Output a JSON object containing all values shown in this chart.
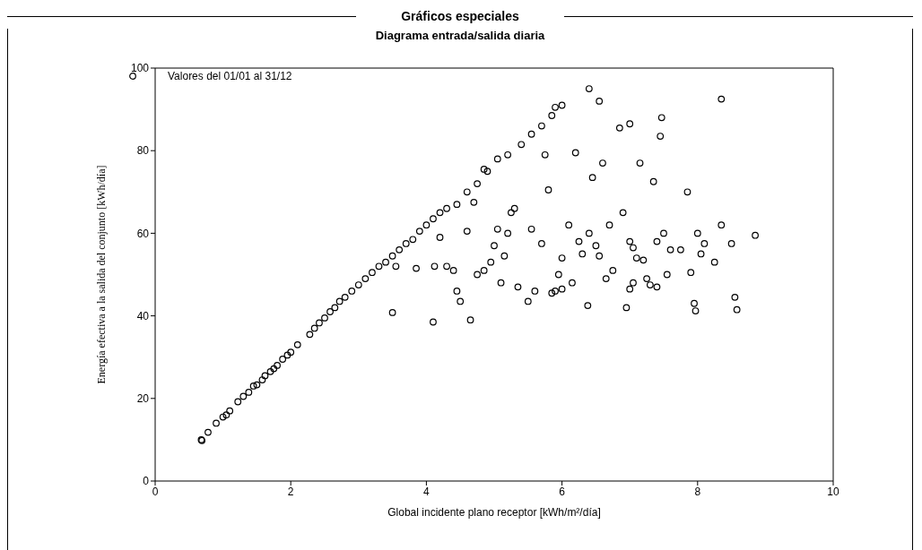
{
  "chart_data": {
    "type": "scatter",
    "title": "Gráficos especiales",
    "subtitle": "Diagrama entrada/salida diaria",
    "xlabel": "Global incidente plano receptor [kWh/m²/día]",
    "ylabel": "Energía efectiva a la salida del conjunto [kWh/día]",
    "xlim": [
      0,
      10
    ],
    "xticks": [
      0,
      2,
      4,
      6,
      8,
      10
    ],
    "ylim": [
      0,
      100
    ],
    "yticks": [
      0,
      20,
      40,
      60,
      80,
      100
    ],
    "grid": false,
    "legend": "top left",
    "marker": "circle",
    "x": [
      0.68,
      0.69,
      0.78,
      0.9,
      1.0,
      1.05,
      1.1,
      1.22,
      1.3,
      1.38,
      1.45,
      1.5,
      1.58,
      1.62,
      1.7,
      1.75,
      1.8,
      1.88,
      1.95,
      2.0,
      2.1,
      2.28,
      2.35,
      2.42,
      2.5,
      2.58,
      2.65,
      2.72,
      2.8,
      2.9,
      3.0,
      3.1,
      3.2,
      3.3,
      3.4,
      3.5,
      3.6,
      3.7,
      3.8,
      3.9,
      4.0,
      4.1,
      4.2,
      4.3,
      4.45,
      4.6,
      4.75,
      4.85,
      4.9,
      5.05,
      5.2,
      5.4,
      5.55,
      5.7,
      5.85,
      5.9,
      6.0,
      6.4,
      6.55,
      7.0,
      7.47,
      7.45,
      8.35,
      3.5,
      3.85,
      4.1,
      4.12,
      4.3,
      4.45,
      4.5,
      4.6,
      4.65,
      4.7,
      4.75,
      4.85,
      4.95,
      5.0,
      5.05,
      5.1,
      5.15,
      5.2,
      5.25,
      5.35,
      5.5,
      5.55,
      5.6,
      5.7,
      5.75,
      5.8,
      5.85,
      5.95,
      6.0,
      6.1,
      6.15,
      6.2,
      6.25,
      6.3,
      6.38,
      6.45,
      6.5,
      6.55,
      6.6,
      6.7,
      6.75,
      6.85,
      6.9,
      6.95,
      7.0,
      7.05,
      7.1,
      7.15,
      7.2,
      7.3,
      7.35,
      7.4,
      7.5,
      7.55,
      7.6,
      7.75,
      7.85,
      7.9,
      7.95,
      8.0,
      8.05,
      8.1,
      8.25,
      8.35,
      8.5,
      8.55,
      8.58,
      8.85,
      7.0,
      7.25,
      6.65,
      6.0,
      5.3,
      4.2,
      4.4,
      3.55,
      7.97,
      7.4,
      7.05,
      6.4,
      5.9
    ],
    "series": [
      {
        "name": "Valores del 01/01 al 31/12",
        "color": "#000000",
        "values": [
          10,
          9.8,
          11.8,
          14,
          15.5,
          16,
          17,
          19.2,
          20.5,
          21.5,
          23,
          23.3,
          24.5,
          25.5,
          26.5,
          27.2,
          28,
          29.5,
          30.5,
          31.2,
          33,
          35.5,
          37,
          38.3,
          39.5,
          41,
          42,
          43.5,
          44.5,
          46,
          47.5,
          49,
          50.5,
          52,
          53,
          54.5,
          56,
          57.5,
          58.5,
          60.5,
          62,
          63.5,
          65,
          66,
          67,
          70,
          72,
          75.5,
          75,
          78,
          79,
          81.5,
          84,
          86,
          88.5,
          90.5,
          91,
          95,
          92,
          86.5,
          88,
          83.5,
          92.5,
          40.8,
          51.5,
          38.5,
          52,
          52,
          46,
          43.5,
          60.5,
          39,
          67.5,
          50,
          51,
          53,
          57,
          61,
          48,
          54.5,
          60,
          65,
          47,
          43.5,
          61,
          46,
          57.5,
          79,
          70.5,
          45.5,
          50,
          46.5,
          62,
          48,
          79.5,
          58,
          55,
          42.5,
          73.5,
          57,
          54.5,
          77,
          62,
          51,
          85.5,
          65,
          42,
          58,
          48,
          54,
          77,
          53.5,
          47.5,
          72.5,
          58,
          60,
          50,
          56,
          56,
          70,
          50.5,
          43,
          60,
          55,
          57.5,
          53,
          62,
          57.5,
          44.5,
          41.5,
          59.5,
          46.5,
          49,
          49,
          54,
          66,
          59,
          51,
          52,
          41.2,
          47,
          56.5,
          60,
          46
        ]
      }
    ]
  }
}
